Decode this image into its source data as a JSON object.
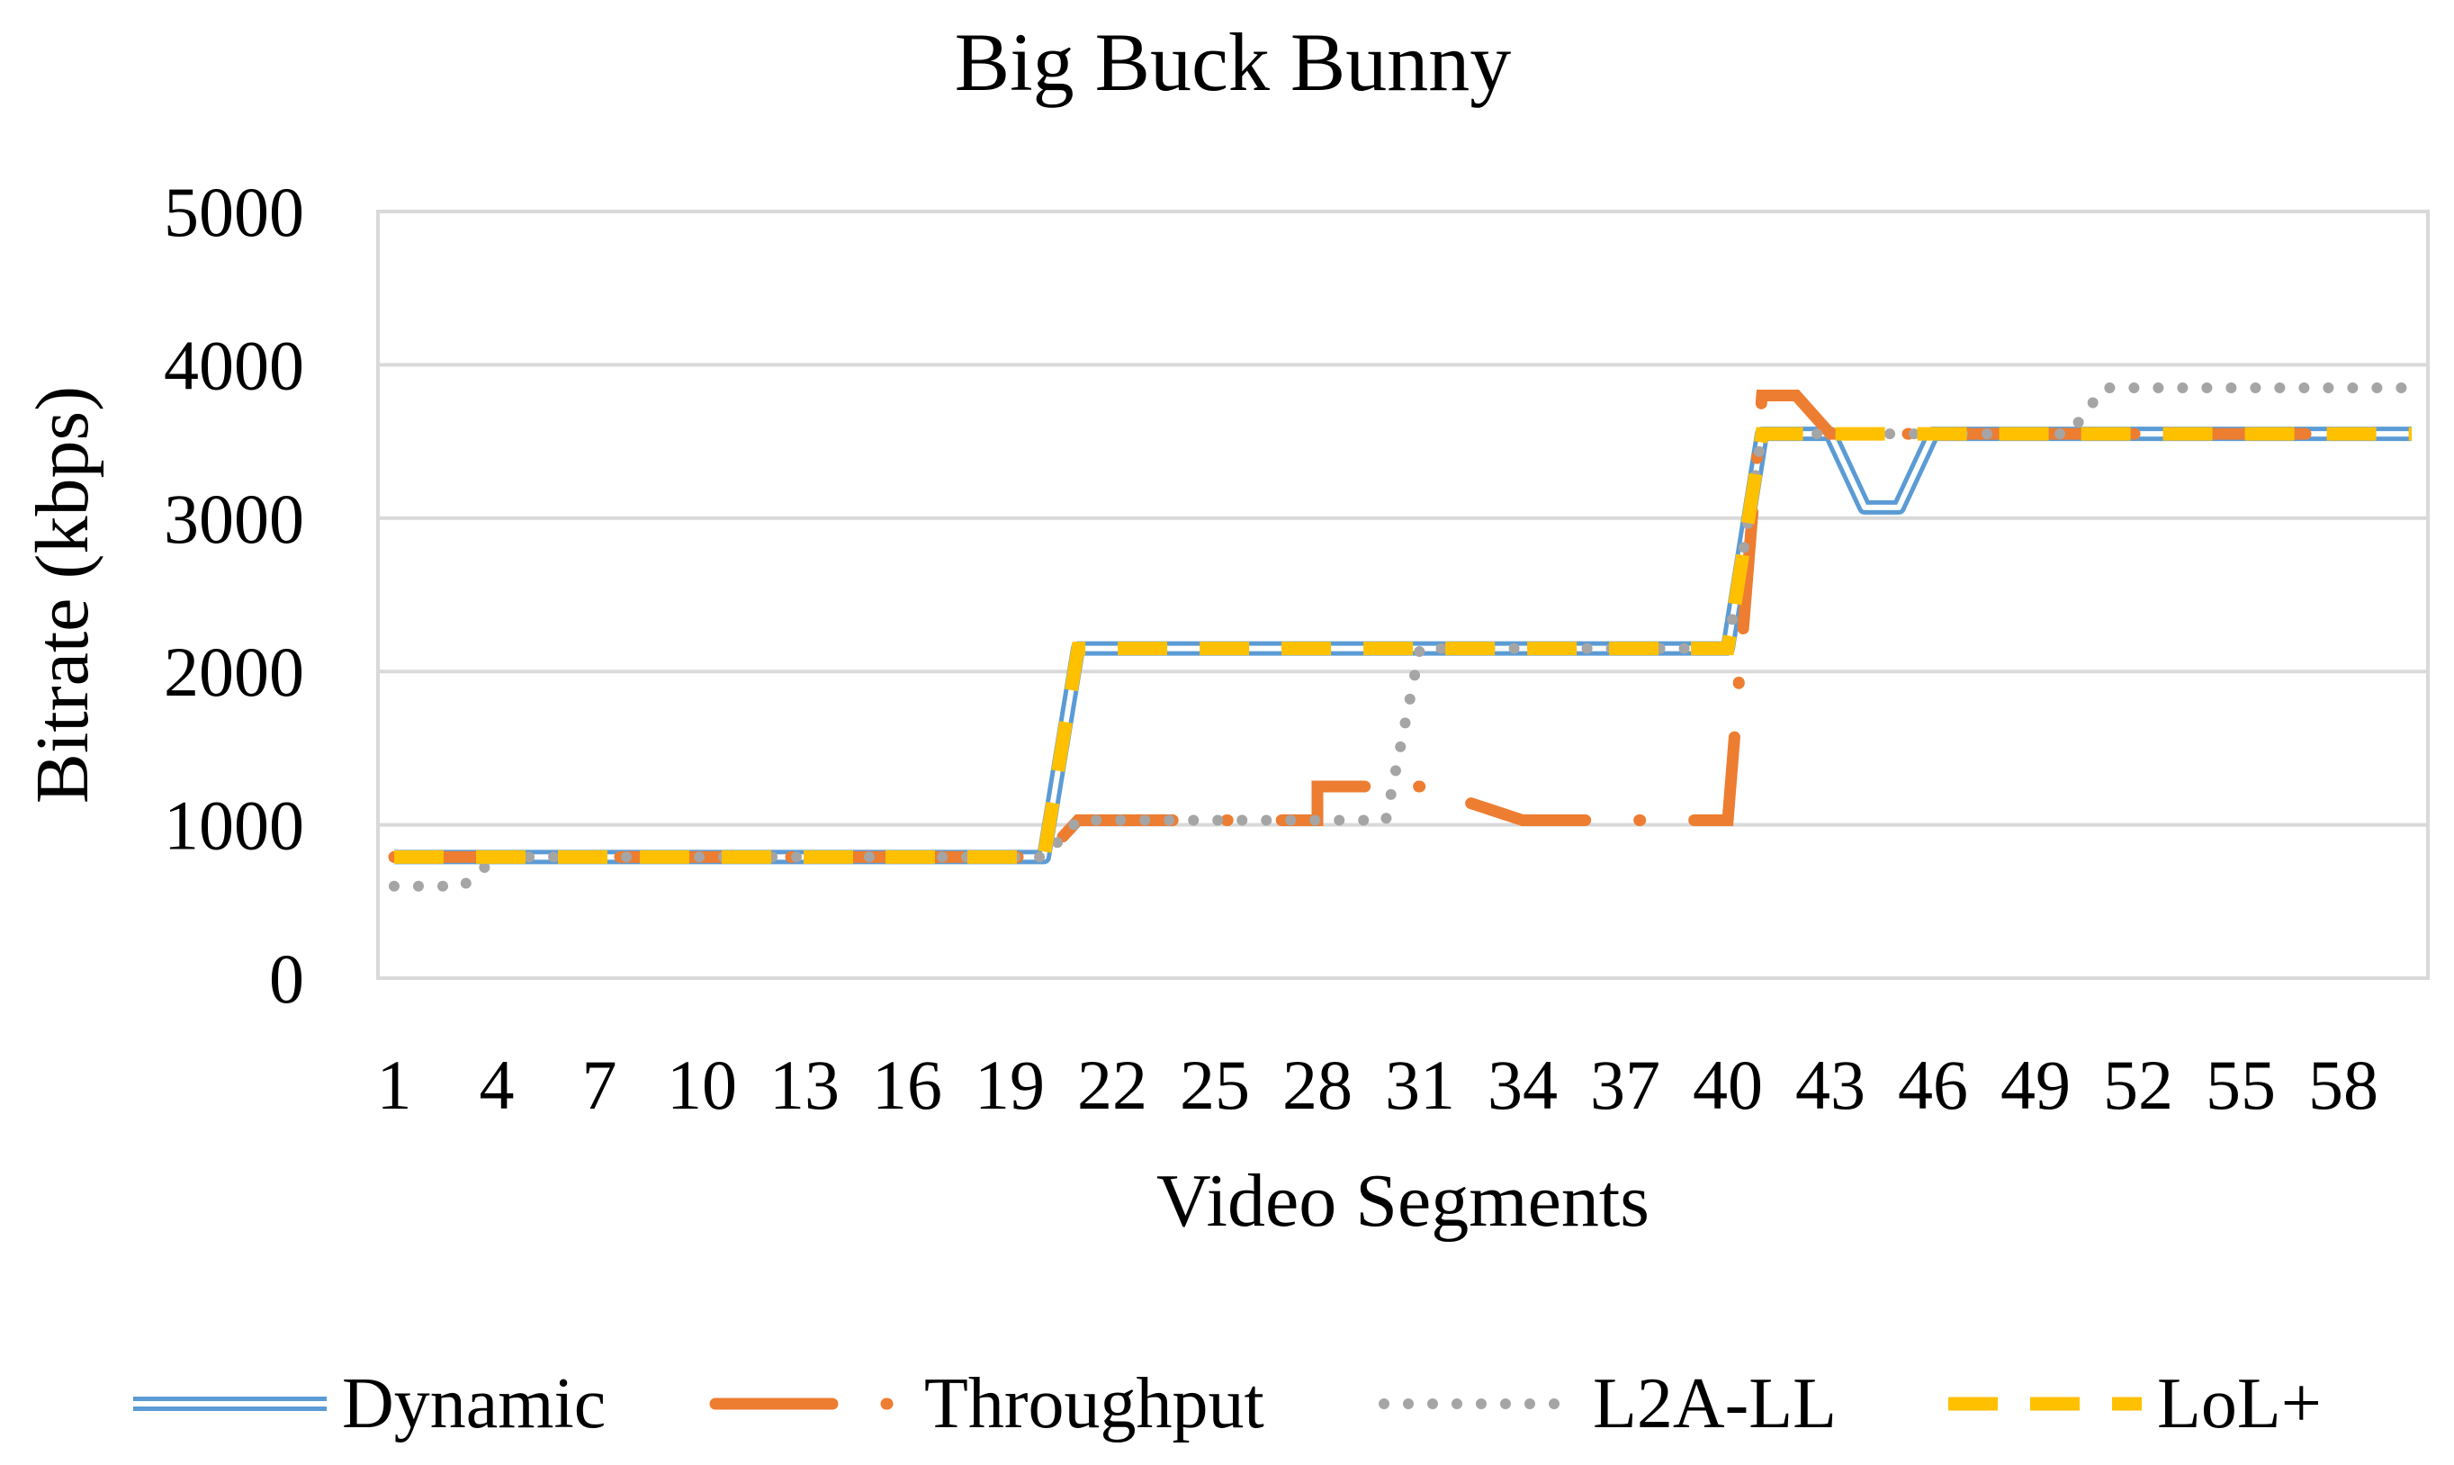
{
  "chart_data": {
    "type": "line",
    "title": "Big Buck Bunny",
    "xlabel": "Video Segments",
    "ylabel": "Bitrate (kbps)",
    "ylim": [
      0,
      5000
    ],
    "yticks": [
      0,
      1000,
      2000,
      3000,
      4000,
      5000
    ],
    "xlim": [
      1,
      60
    ],
    "xticks": [
      "1",
      "4",
      "7",
      "10",
      "13",
      "16",
      "19",
      "22",
      "25",
      "28",
      "31",
      "34",
      "37",
      "40",
      "43",
      "46",
      "49",
      "52",
      "55",
      "58"
    ],
    "grid": "horizontal",
    "legend_position": "bottom",
    "series": [
      {
        "name": "Dynamic",
        "color": "#5B9BD5",
        "style": "double",
        "points": [
          [
            1,
            790
          ],
          [
            20,
            790
          ],
          [
            21,
            2150
          ],
          [
            40,
            2150
          ],
          [
            41,
            3550
          ],
          [
            43,
            3550
          ],
          [
            44,
            3070
          ],
          [
            45,
            3070
          ],
          [
            46,
            3550
          ],
          [
            60,
            3550
          ]
        ]
      },
      {
        "name": "Throughput",
        "color": "#ED7D31",
        "style": "long-dash-dot",
        "points": [
          [
            1,
            790
          ],
          [
            20,
            790
          ],
          [
            21,
            1030
          ],
          [
            28,
            1030
          ],
          [
            28,
            1250
          ],
          [
            31,
            1250
          ],
          [
            34,
            1030
          ],
          [
            40,
            1030
          ],
          [
            41,
            3800
          ],
          [
            42,
            3800
          ],
          [
            43,
            3550
          ],
          [
            60,
            3550
          ]
        ]
      },
      {
        "name": "L2A-LL",
        "color": "#A5A5A5",
        "style": "dotted",
        "points": [
          [
            1,
            600
          ],
          [
            3,
            600
          ],
          [
            4,
            790
          ],
          [
            20,
            790
          ],
          [
            21,
            1030
          ],
          [
            30,
            1030
          ],
          [
            31,
            2150
          ],
          [
            40,
            2150
          ],
          [
            41,
            3550
          ],
          [
            50,
            3550
          ],
          [
            51,
            3850
          ],
          [
            60,
            3850
          ]
        ]
      },
      {
        "name": "LoL+",
        "color": "#FFC000",
        "style": "dashed",
        "points": [
          [
            1,
            790
          ],
          [
            20,
            790
          ],
          [
            21,
            2150
          ],
          [
            40,
            2150
          ],
          [
            41,
            3550
          ],
          [
            60,
            3550
          ]
        ]
      }
    ]
  }
}
